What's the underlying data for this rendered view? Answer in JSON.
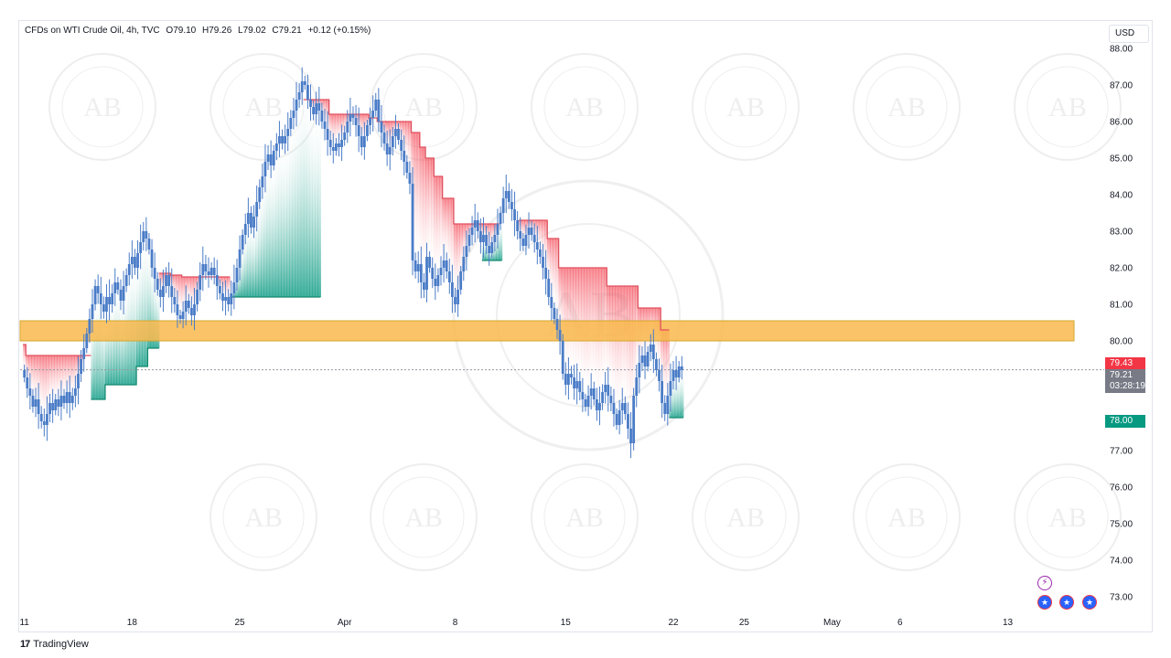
{
  "legend": {
    "symbol": "CFDs on WTI Crude Oil, 4h, TVC",
    "open": "O79.10",
    "high": "H79.26",
    "low": "L79.02",
    "close": "C79.21",
    "change": "+0.12 (+0.15%)"
  },
  "currency": "USD",
  "branding": "TradingView",
  "price_tags": {
    "upper": "79.43",
    "last": "79.21",
    "countdown": "03:28:19",
    "lower": "78.00"
  },
  "colors": {
    "up": "#4a7cc7",
    "down": "#4a7cc7",
    "support_zone": "#f9b94c",
    "green": "#089981",
    "red": "#f23645"
  },
  "chart_data": {
    "type": "candlestick",
    "y_ticks": [
      "88.00",
      "87.00",
      "86.00",
      "85.00",
      "84.00",
      "83.00",
      "82.00",
      "81.00",
      "80.00",
      "78.00",
      "77.00",
      "76.00",
      "75.00",
      "74.00",
      "73.00"
    ],
    "y_range": [
      72.7,
      88.1
    ],
    "x_ticks": [
      "11",
      "18",
      "25",
      "Apr",
      "8",
      "15",
      "22",
      "25",
      "May",
      "6",
      "13"
    ],
    "tick_positions": [
      0,
      38,
      76,
      113,
      152,
      191,
      229,
      254,
      285,
      309,
      347
    ],
    "x_range": [
      -1.5,
      362
    ],
    "support_zone": {
      "low": 80.0,
      "high": 80.55
    },
    "last_price": 79.21,
    "closes": [
      79.0,
      78.7,
      78.5,
      78.2,
      78.4,
      78.0,
      77.8,
      77.7,
      78.0,
      78.3,
      78.1,
      78.4,
      78.2,
      78.5,
      78.3,
      78.6,
      78.3,
      78.5,
      78.7,
      79.1,
      79.5,
      79.8,
      80.2,
      80.6,
      81.0,
      81.5,
      81.3,
      81.0,
      80.8,
      81.2,
      81.0,
      81.3,
      81.6,
      81.4,
      81.1,
      81.5,
      81.8,
      82.1,
      82.3,
      82.0,
      82.4,
      82.7,
      83.0,
      82.8,
      82.5,
      82.0,
      81.7,
      81.4,
      81.2,
      81.5,
      81.8,
      81.5,
      81.2,
      81.0,
      80.7,
      80.6,
      80.8,
      81.1,
      80.9,
      80.7,
      81.0,
      81.4,
      81.8,
      82.1,
      81.9,
      81.8,
      82.0,
      81.8,
      81.5,
      81.3,
      81.1,
      81.2,
      81.0,
      81.3,
      81.6,
      82.0,
      82.5,
      82.9,
      83.2,
      83.5,
      83.1,
      83.4,
      83.8,
      84.2,
      84.5,
      84.9,
      85.1,
      84.8,
      85.2,
      85.4,
      85.6,
      85.4,
      85.6,
      85.8,
      86.1,
      86.3,
      86.6,
      86.8,
      87.1,
      87.0,
      86.6,
      86.4,
      86.2,
      86.5,
      86.3,
      86.0,
      85.8,
      85.5,
      85.3,
      85.2,
      85.4,
      85.3,
      85.5,
      85.7,
      86.0,
      86.2,
      86.1,
      85.9,
      85.6,
      85.3,
      85.6,
      85.9,
      86.1,
      86.3,
      86.6,
      86.0,
      85.7,
      85.4,
      85.1,
      85.3,
      85.6,
      85.8,
      85.5,
      85.2,
      84.9,
      84.6,
      84.3,
      82.2,
      81.9,
      82.1,
      81.6,
      81.4,
      82.3,
      82.0,
      81.7,
      81.5,
      81.8,
      82.0,
      82.2,
      81.9,
      81.6,
      81.2,
      81.0,
      81.4,
      81.9,
      82.3,
      82.6,
      82.9,
      83.1,
      83.3,
      83.0,
      82.7,
      82.9,
      82.6,
      82.4,
      82.7,
      82.9,
      83.2,
      83.5,
      83.9,
      84.1,
      83.8,
      83.6,
      83.3,
      83.0,
      82.8,
      82.6,
      82.9,
      83.1,
      82.9,
      82.7,
      82.5,
      82.3,
      82.0,
      81.7,
      81.2,
      80.9,
      80.6,
      80.3,
      80.0,
      79.1,
      78.8,
      79.1,
      79.0,
      78.7,
      78.9,
      78.6,
      78.4,
      78.2,
      78.5,
      78.7,
      78.4,
      78.1,
      78.3,
      78.6,
      78.8,
      78.5,
      78.3,
      78.0,
      77.7,
      78.1,
      78.3,
      78.0,
      77.6,
      77.2,
      78.5,
      79.0,
      79.4,
      79.6,
      79.3,
      79.7,
      79.9,
      79.5,
      79.2,
      78.9,
      78.3,
      78.0,
      78.5,
      78.9,
      79.2,
      79.0,
      79.3,
      79.2
    ],
    "ts_upper": [
      79.9,
      79.6,
      79.6,
      79.6,
      79.6,
      79.6,
      79.6,
      79.6,
      79.6,
      79.6,
      79.6,
      79.6,
      79.6,
      79.6,
      79.6,
      79.6,
      79.6,
      79.6,
      79.6,
      79.6,
      79.6,
      79.6,
      79.6,
      79.6,
      null,
      null,
      null,
      null,
      null,
      null,
      null,
      null,
      null,
      null,
      null,
      null,
      null,
      null,
      null,
      null,
      null,
      null,
      null,
      null,
      null,
      null,
      null,
      null,
      81.85,
      81.85,
      81.85,
      81.85,
      81.8,
      81.8,
      81.8,
      81.8,
      81.75,
      81.75,
      81.75,
      81.75,
      81.75,
      81.75,
      81.75,
      81.75,
      81.75,
      81.75,
      81.75,
      81.75,
      81.75,
      81.75,
      81.75,
      81.75,
      81.75,
      null,
      null,
      null,
      null,
      null,
      null,
      null,
      null,
      null,
      null,
      null,
      null,
      null,
      null,
      null,
      null,
      null,
      null,
      null,
      null,
      null,
      null,
      null,
      null,
      null,
      null,
      86.6,
      86.6,
      86.6,
      86.6,
      86.6,
      86.6,
      86.6,
      86.6,
      86.6,
      86.2,
      86.2,
      86.2,
      86.2,
      86.2,
      86.2,
      86.2,
      86.2,
      86.2,
      86.2,
      86.2,
      86.2,
      86.2,
      86.2,
      86.1,
      86.1,
      86.1,
      86.0,
      86.0,
      86.0,
      86.0,
      86.0,
      86.0,
      86.0,
      86.0,
      86.0,
      86.0,
      86.0,
      86.0,
      85.7,
      85.7,
      85.7,
      85.3,
      85.3,
      85.0,
      85.0,
      85.0,
      84.5,
      84.5,
      84.5,
      83.9,
      83.9,
      83.9,
      83.9,
      83.2,
      83.2,
      83.2,
      83.2,
      83.2,
      83.2,
      83.2,
      83.2,
      83.2,
      83.2,
      83.2,
      83.2,
      83.2,
      83.2,
      83.2,
      83.2,
      null,
      null,
      null,
      null,
      null,
      null,
      null,
      83.3,
      83.3,
      83.3,
      83.3,
      83.3,
      83.3,
      83.3,
      83.3,
      83.3,
      83.3,
      82.8,
      82.8,
      82.8,
      82.8,
      82.0,
      82.0,
      82.0,
      82.0,
      82.0,
      82.0,
      82.0,
      82.0,
      82.0,
      82.0,
      82.0,
      82.0,
      82.0,
      82.0,
      82.0,
      82.0,
      82.0,
      81.5,
      81.5,
      81.5,
      81.5,
      81.5,
      81.5,
      81.5,
      81.5,
      81.5,
      81.5,
      81.5,
      80.9,
      80.9,
      80.9,
      80.9,
      80.9,
      80.9,
      80.9,
      80.9,
      80.3,
      80.3,
      80.3,
      null,
      null,
      null,
      null,
      null,
      null,
      null,
      null,
      79.4,
      79.4,
      79.4,
      79.4,
      79.4,
      79.4,
      79.4,
      79.4,
      79.4,
      79.4,
      79.4,
      79.4,
      79.4
    ],
    "ts_lower": [
      null,
      null,
      null,
      null,
      null,
      null,
      null,
      null,
      null,
      null,
      null,
      null,
      null,
      null,
      null,
      null,
      null,
      null,
      null,
      null,
      null,
      null,
      null,
      null,
      78.4,
      78.4,
      78.4,
      78.4,
      78.4,
      78.8,
      78.8,
      78.8,
      78.8,
      78.8,
      78.8,
      78.8,
      78.8,
      78.8,
      78.8,
      78.8,
      79.3,
      79.3,
      79.3,
      79.3,
      79.8,
      79.8,
      79.8,
      79.8,
      null,
      null,
      null,
      null,
      null,
      null,
      null,
      null,
      null,
      null,
      null,
      null,
      null,
      null,
      null,
      null,
      null,
      null,
      null,
      null,
      null,
      null,
      null,
      null,
      null,
      81.2,
      81.2,
      81.2,
      81.2,
      81.2,
      81.2,
      81.2,
      81.2,
      81.2,
      81.2,
      81.2,
      81.2,
      81.2,
      81.2,
      81.2,
      81.2,
      81.2,
      81.2,
      81.2,
      81.2,
      81.2,
      81.2,
      81.2,
      81.2,
      81.2,
      81.2,
      81.2,
      81.2,
      81.2,
      81.2,
      81.2,
      81.2,
      null,
      null,
      null,
      null,
      null,
      null,
      null,
      null,
      null,
      null,
      null,
      null,
      null,
      null,
      null,
      null,
      null,
      null,
      null,
      null,
      null,
      null,
      null,
      null,
      null,
      null,
      null,
      null,
      null,
      null,
      null,
      null,
      null,
      null,
      null,
      null,
      null,
      null,
      null,
      null,
      null,
      null,
      null,
      null,
      null,
      null,
      null,
      null,
      null,
      null,
      null,
      null,
      null,
      null,
      null,
      null,
      null,
      82.2,
      82.2,
      82.2,
      82.2,
      82.2,
      82.2,
      82.2,
      null,
      null,
      null,
      null,
      null,
      null,
      null,
      null,
      null,
      null,
      null,
      null,
      null,
      null,
      null,
      null,
      null,
      null,
      null,
      null,
      null,
      null,
      null,
      null,
      null,
      null,
      null,
      null,
      null,
      null,
      null,
      null,
      null,
      null,
      null,
      null,
      null,
      null,
      null,
      null,
      null,
      null,
      null,
      null,
      null,
      null,
      null,
      null,
      null,
      null,
      null,
      null,
      null,
      null,
      null,
      null,
      null,
      null,
      null,
      77.9,
      77.9,
      77.9,
      77.9,
      77.9,
      77.9,
      77.9,
      78.0,
      null,
      null,
      null,
      null,
      null,
      null,
      null,
      null,
      null,
      null,
      null,
      null,
      null
    ]
  }
}
